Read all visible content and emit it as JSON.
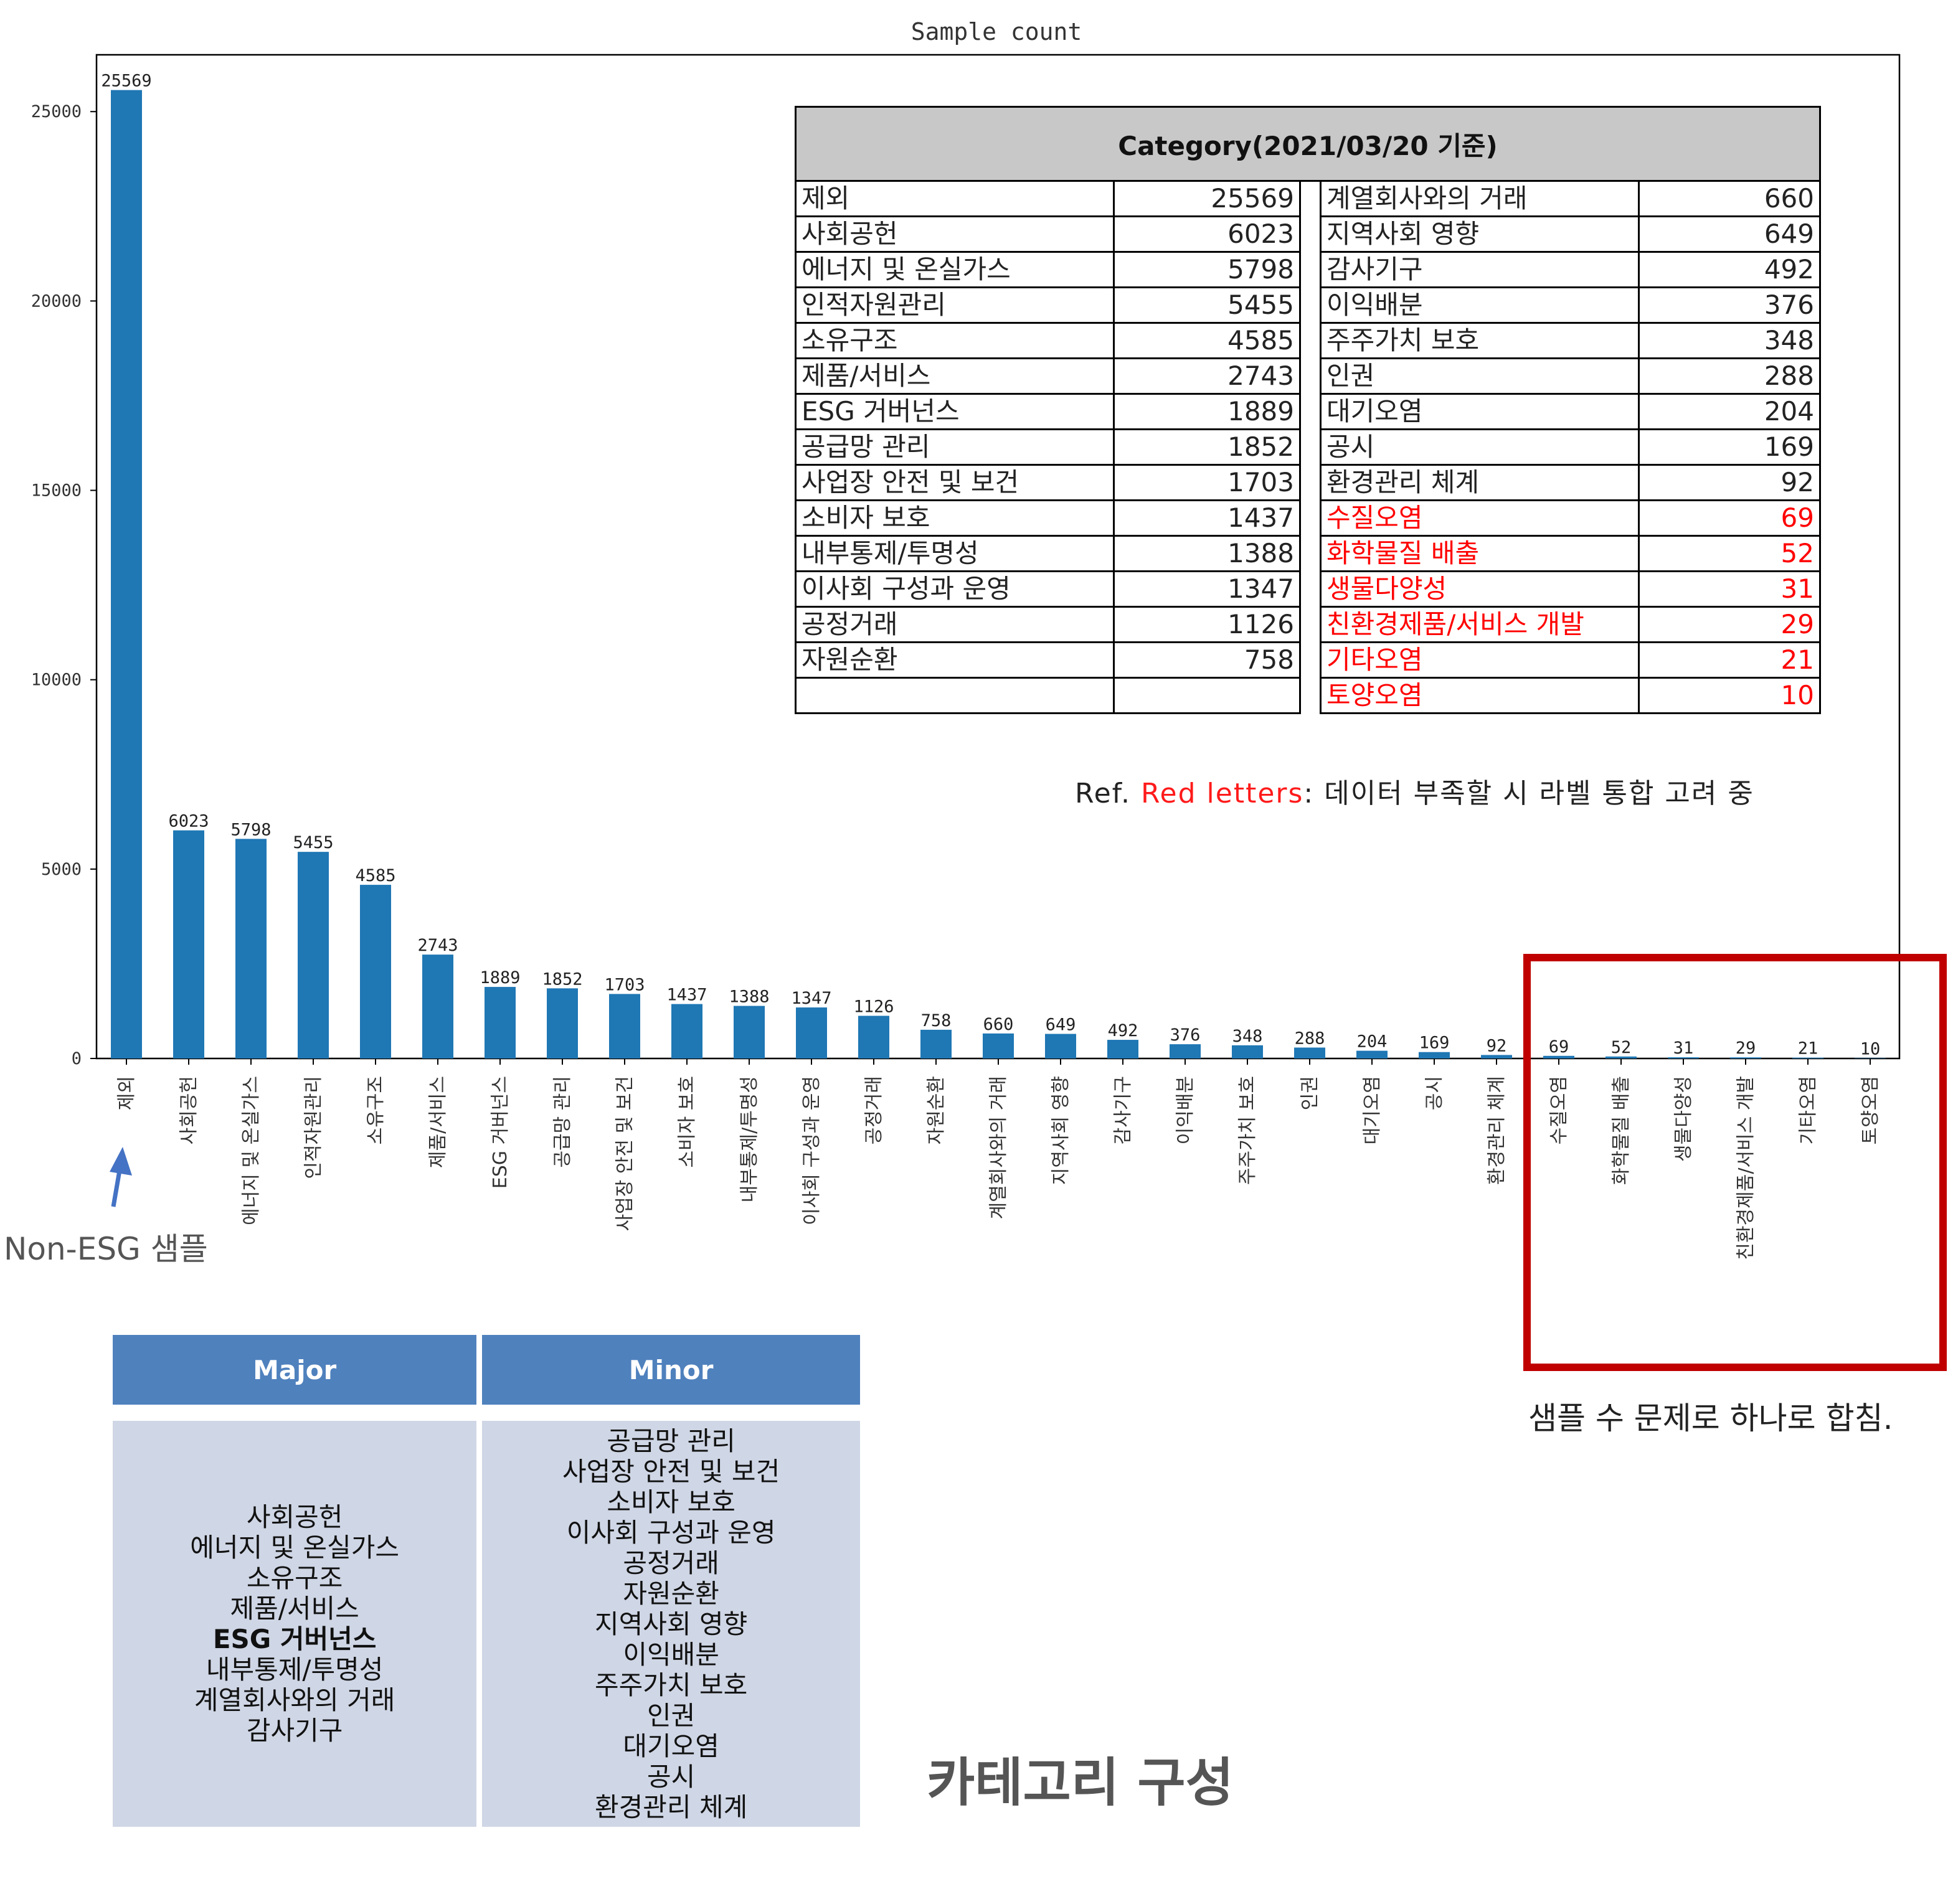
{
  "chart_data": {
    "type": "bar",
    "title": "Sample count",
    "xlabel": "",
    "ylabel": "",
    "ylim": [
      0,
      26500
    ],
    "yticks": [
      0,
      5000,
      10000,
      15000,
      20000,
      25000
    ],
    "color": "#1f77b4",
    "grid": false,
    "categories": [
      "제외",
      "사회공헌",
      "에너지 및 온실가스",
      "인적자원관리",
      "소유구조",
      "제품/서비스",
      "ESG 거버넌스",
      "공급망 관리",
      "사업장 안전 및 보건",
      "소비자 보호",
      "내부통제/투명성",
      "이사회 구성과 운영",
      "공정거래",
      "자원순환",
      "계열회사와의 거래",
      "지역사회 영향",
      "감사기구",
      "이익배분",
      "주주가치 보호",
      "인권",
      "대기오염",
      "공시",
      "환경관리 체계",
      "수질오염",
      "화학물질 배출",
      "생물다양성",
      "친환경제품/서비스 개발",
      "기타오염",
      "토양오염"
    ],
    "values": [
      25569,
      6023,
      5798,
      5455,
      4585,
      2743,
      1889,
      1852,
      1703,
      1437,
      1388,
      1347,
      1126,
      758,
      660,
      649,
      492,
      376,
      348,
      288,
      204,
      169,
      92,
      69,
      52,
      31,
      29,
      21,
      10
    ]
  },
  "category_table": {
    "title": "Category(2021/03/20 기준)",
    "left": [
      {
        "name": "제외",
        "count": "25569"
      },
      {
        "name": "사회공헌",
        "count": "6023"
      },
      {
        "name": "에너지 및 온실가스",
        "count": "5798"
      },
      {
        "name": "인적자원관리",
        "count": "5455"
      },
      {
        "name": "소유구조",
        "count": "4585"
      },
      {
        "name": "제품/서비스",
        "count": "2743"
      },
      {
        "name": "ESG 거버넌스",
        "count": "1889"
      },
      {
        "name": "공급망 관리",
        "count": "1852"
      },
      {
        "name": "사업장 안전 및 보건",
        "count": "1703"
      },
      {
        "name": "소비자 보호",
        "count": "1437"
      },
      {
        "name": "내부통제/투명성",
        "count": "1388"
      },
      {
        "name": "이사회 구성과 운영",
        "count": "1347"
      },
      {
        "name": "공정거래",
        "count": "1126"
      },
      {
        "name": "자원순환",
        "count": "758"
      },
      {
        "name": "",
        "count": ""
      }
    ],
    "right": [
      {
        "name": "계열회사와의 거래",
        "count": "660",
        "red": false
      },
      {
        "name": "지역사회 영향",
        "count": "649",
        "red": false
      },
      {
        "name": "감사기구",
        "count": "492",
        "red": false
      },
      {
        "name": "이익배분",
        "count": "376",
        "red": false
      },
      {
        "name": "주주가치 보호",
        "count": "348",
        "red": false
      },
      {
        "name": "인권",
        "count": "288",
        "red": false
      },
      {
        "name": "대기오염",
        "count": "204",
        "red": false
      },
      {
        "name": "공시",
        "count": "169",
        "red": false
      },
      {
        "name": "환경관리 체계",
        "count": "92",
        "red": false
      },
      {
        "name": "수질오염",
        "count": "69",
        "red": true
      },
      {
        "name": "화학물질 배출",
        "count": "52",
        "red": true
      },
      {
        "name": "생물다양성",
        "count": "31",
        "red": true
      },
      {
        "name": "친환경제품/서비스 개발",
        "count": "29",
        "red": true
      },
      {
        "name": "기타오염",
        "count": "21",
        "red": true
      },
      {
        "name": "토양오염",
        "count": "10",
        "red": true
      }
    ]
  },
  "ref_note": {
    "prefix": "Ref. ",
    "red_part": "Red letters",
    "suffix": ": 데이터 부족할 시 라벨 통합 고려 중"
  },
  "merge_note": "샘플 수 문제로 하나로 합침.",
  "non_esg_label": "Non-ESG 샘플",
  "major_minor": {
    "major_header": "Major",
    "minor_header": "Minor",
    "major": [
      "사회공헌",
      "에너지 및 온실가스",
      "소유구조",
      "제품/서비스",
      "ESG 거버넌스",
      "내부통제/투명성",
      "계열회사와의 거래",
      "감사기구"
    ],
    "minor": [
      "공급망 관리",
      "사업장 안전 및 보건",
      "소비자 보호",
      "이사회 구성과 운영",
      "공정거래",
      "자원순환",
      "지역사회 영향",
      "이익배분",
      "주주가치 보호",
      "인권",
      "대기오염",
      "공시",
      "환경관리 체계"
    ]
  },
  "composition_title": "카테고리 구성",
  "colors": {
    "bar": "#1f77b4",
    "red_box": "#c00000",
    "header_blue": "#4f81bd",
    "cell_blue": "#cfd6e5",
    "table_header_gray": "#c8c8c8"
  }
}
